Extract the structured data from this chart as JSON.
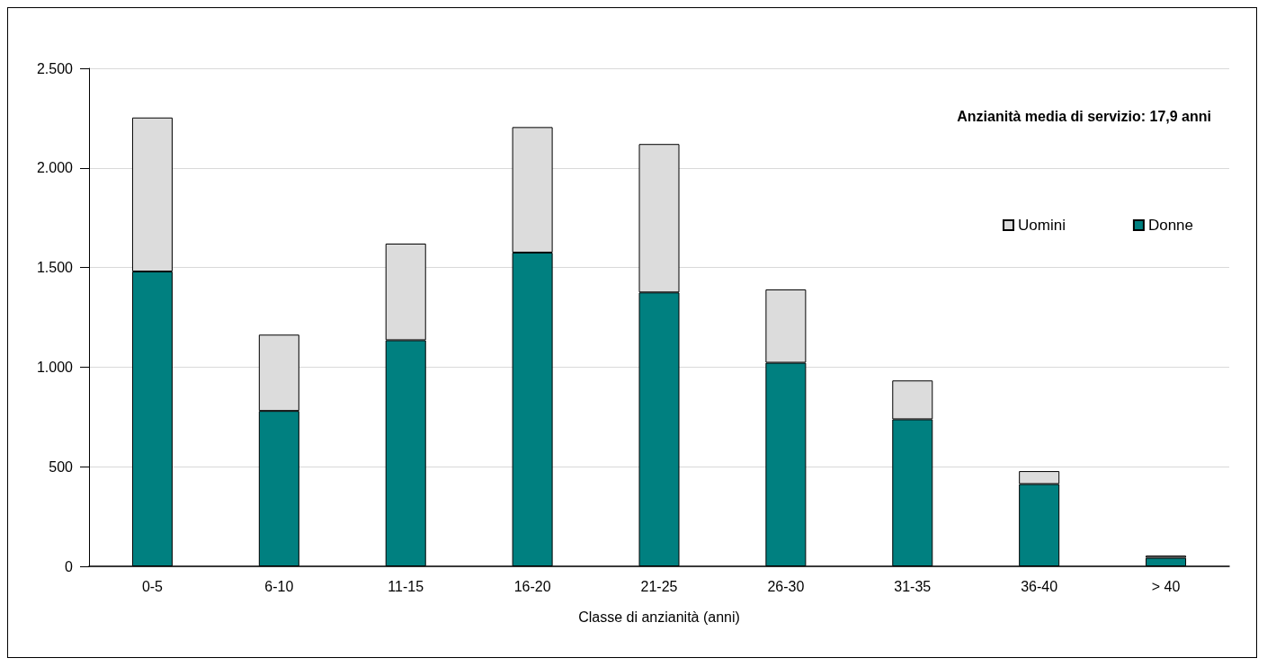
{
  "chart_data": {
    "type": "bar",
    "stacked": true,
    "xlabel": "Classe di anzianità (anni)",
    "categories": [
      "0-5",
      "6-10",
      "11-15",
      "16-20",
      "21-25",
      "26-30",
      "31-35",
      "36-40",
      "> 40"
    ],
    "series": [
      {
        "name": "Donne",
        "color": "#008080",
        "values": [
          1480,
          780,
          1135,
          1575,
          1375,
          1022,
          738,
          413,
          43
        ]
      },
      {
        "name": "Uomini",
        "color": "#dcdcdc",
        "values": [
          773,
          383,
          485,
          630,
          745,
          368,
          195,
          65,
          11
        ]
      }
    ],
    "ylim": [
      0,
      2500
    ],
    "yticks": [
      {
        "value": 0,
        "label": "0"
      },
      {
        "value": 500,
        "label": "500"
      },
      {
        "value": 1000,
        "label": "1.000"
      },
      {
        "value": 1500,
        "label": "1.500"
      },
      {
        "value": 2000,
        "label": "2.000"
      },
      {
        "value": 2500,
        "label": "2.500"
      }
    ],
    "grid": "y",
    "legend": "top right",
    "annotations": [
      "Anzianità media di servizio: 17,9 anni"
    ]
  }
}
